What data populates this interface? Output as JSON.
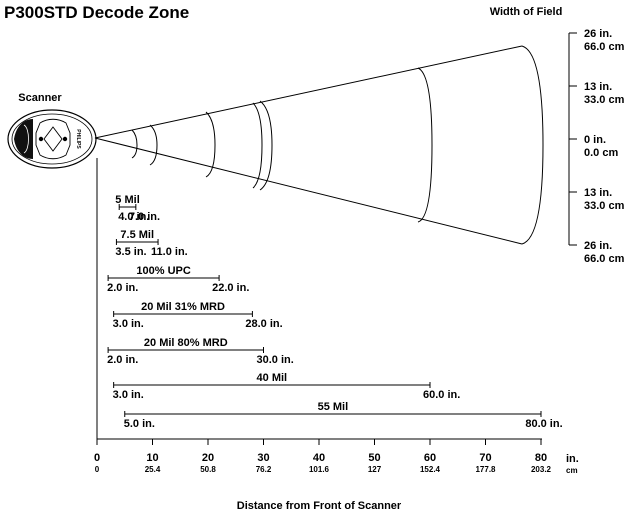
{
  "title": "P300STD Decode Zone",
  "width_header": "Width of Field",
  "scanner_label": "Scanner",
  "scanner_brand": "PHILIPS",
  "x_axis_label": "Distance from Front of Scanner",
  "x_unit_in": "in.",
  "x_unit_cm": "cm",
  "x_ticks": [
    {
      "in": "0",
      "cm": "0"
    },
    {
      "in": "10",
      "cm": "25.4"
    },
    {
      "in": "20",
      "cm": "50.8"
    },
    {
      "in": "30",
      "cm": "76.2"
    },
    {
      "in": "40",
      "cm": "101.6"
    },
    {
      "in": "50",
      "cm": "127"
    },
    {
      "in": "60",
      "cm": "152.4"
    },
    {
      "in": "70",
      "cm": "177.8"
    },
    {
      "in": "80",
      "cm": "203.2"
    }
  ],
  "width_ticks": [
    {
      "in": "26 in.",
      "cm": "66.0 cm"
    },
    {
      "in": "13 in.",
      "cm": "33.0 cm"
    },
    {
      "in": "0 in.",
      "cm": "0.0 cm"
    },
    {
      "in": "13 in.",
      "cm": "33.0 cm"
    },
    {
      "in": "26 in.",
      "cm": "66.0 cm"
    }
  ],
  "ranges": [
    {
      "label": "5 Mil",
      "start": 4.0,
      "end": 7.0,
      "start_label": "4.0 in.",
      "end_label": "7.0 in."
    },
    {
      "label": "7.5 Mil",
      "start": 3.5,
      "end": 11.0,
      "start_label": "3.5 in.",
      "end_label": "11.0 in."
    },
    {
      "label": "100% UPC",
      "start": 2.0,
      "end": 22.0,
      "start_label": "2.0 in.",
      "end_label": "22.0 in."
    },
    {
      "label": "20 Mil  31% MRD",
      "start": 3.0,
      "end": 28.0,
      "start_label": "3.0 in.",
      "end_label": "28.0 in."
    },
    {
      "label": "20 Mil  80% MRD",
      "start": 2.0,
      "end": 30.0,
      "start_label": "2.0 in.",
      "end_label": "30.0 in."
    },
    {
      "label": "40 Mil",
      "start": 3.0,
      "end": 60.0,
      "start_label": "3.0 in.",
      "end_label": "60.0 in."
    },
    {
      "label": "55 Mil",
      "start": 5.0,
      "end": 80.0,
      "start_label": "5.0 in.",
      "end_label": "80.0 in."
    }
  ]
}
